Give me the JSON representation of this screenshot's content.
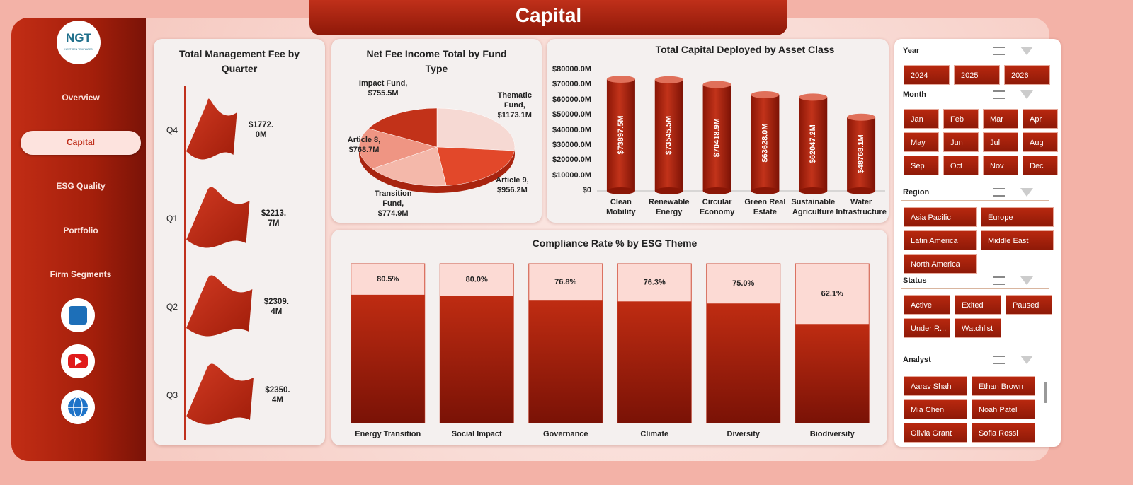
{
  "header": {
    "title": "Capital"
  },
  "logo": {
    "text": "NGT",
    "tagline": "NEXT GEN TEMPLATES"
  },
  "nav": {
    "items": [
      "Overview",
      "Capital",
      "ESG Quality",
      "Portfolio",
      "Firm Segments"
    ],
    "active": 1
  },
  "chart_data": [
    {
      "type": "pictorial",
      "title": "Total Management Fee by Quarter",
      "categories": [
        "Q4",
        "Q1",
        "Q2",
        "Q3"
      ],
      "values": [
        1772.0,
        2213.7,
        2309.4,
        2350.4
      ],
      "value_labels": [
        "$1772.0M",
        "$2213.7M",
        "$2309.4M",
        "$2350.4M"
      ],
      "color": "#c0301c"
    },
    {
      "type": "pie",
      "title": "Net Fee Income Total by Fund Type",
      "categories": [
        "Thematic Fund,",
        "Article 9,",
        "Transition Fund,",
        "Article 8,",
        "Impact Fund,"
      ],
      "values": [
        1173.1,
        956.2,
        774.9,
        768.7,
        755.5
      ],
      "value_labels": [
        "$1173.1M",
        "$956.2M",
        "$774.9M",
        "$768.7M",
        "$755.5M"
      ],
      "colors": [
        "#f6d9d3",
        "#e2482a",
        "#f4b8aa",
        "#ef9583",
        "#c23219"
      ]
    },
    {
      "type": "bar",
      "style": "cylinder",
      "title": "Total Capital Deployed by Asset Class",
      "categories": [
        "Clean Mobility",
        "Renewable Energy",
        "Circular Economy",
        "Green Real Estate",
        "Sustainable Agriculture",
        "Water Infrastructure"
      ],
      "values": [
        73897.5,
        73545.5,
        70418.9,
        63628.0,
        62047.2,
        48768.1
      ],
      "value_labels": [
        "$73897.5M",
        "$73545.5M",
        "$70418.9M",
        "$63628.0M",
        "$62047.2M",
        "$48768.1M"
      ],
      "ylim": [
        0,
        80000
      ],
      "yticks": [
        {
          "value": 0,
          "label": "$0"
        },
        {
          "value": 10000,
          "label": "$10000.0M"
        },
        {
          "value": 20000,
          "label": "$20000.0M"
        },
        {
          "value": 30000,
          "label": "$30000.0M"
        },
        {
          "value": 40000,
          "label": "$40000.0M"
        },
        {
          "value": 50000,
          "label": "$50000.0M"
        },
        {
          "value": 60000,
          "label": "$60000.0M"
        },
        {
          "value": 70000,
          "label": "$70000.0M"
        },
        {
          "value": 80000,
          "label": "$80000.0M"
        }
      ],
      "color": "#b8260f"
    },
    {
      "type": "bar",
      "style": "track",
      "title": "Compliance Rate % by ESG Theme",
      "categories": [
        "Energy Transition",
        "Social Impact",
        "Governance",
        "Climate",
        "Diversity",
        "Biodiversity"
      ],
      "values": [
        80.5,
        80.0,
        76.8,
        76.3,
        75.0,
        62.1
      ],
      "value_labels": [
        "80.5%",
        "80.0%",
        "76.8%",
        "76.3%",
        "75.0%",
        "62.1%"
      ],
      "ylim": [
        0,
        100
      ],
      "color": "#b8260f",
      "track_color": "#fcdad4"
    }
  ],
  "slicers": [
    {
      "title": "Year",
      "items": [
        "2024",
        "2025",
        "2026"
      ]
    },
    {
      "title": "Month",
      "items": [
        "Jan",
        "Feb",
        "Mar",
        "Apr",
        "May",
        "Jun",
        "Jul",
        "Aug",
        "Sep",
        "Oct",
        "Nov",
        "Dec"
      ]
    },
    {
      "title": "Region",
      "items": [
        "Asia Pacific",
        "Europe",
        "Latin America",
        "Middle East",
        "North America"
      ]
    },
    {
      "title": "Status",
      "items": [
        "Active",
        "Exited",
        "Paused",
        "Under R...",
        "Watchlist"
      ]
    },
    {
      "title": "Analyst",
      "items": [
        "Aarav Shah",
        "Ethan Brown",
        "Mia Chen",
        "Noah Patel",
        "Olivia Grant",
        "Sofia Rossi"
      ]
    }
  ]
}
